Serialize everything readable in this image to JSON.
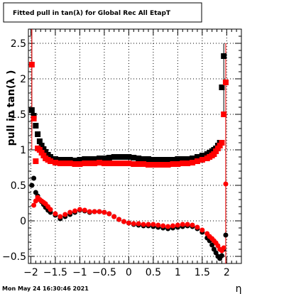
{
  "title": "Fitted pull in tan(λ) for Global Rec All EtapT",
  "timestamp": "Mon May 24 16:30:46 2021",
  "colors": {
    "series_black": "#000000",
    "series_red": "#ff0000",
    "grid": "#000000",
    "background": "#ffffff"
  },
  "chart_data": {
    "type": "scatter",
    "title": "Fitted pull in tan(λ) for Global Rec All EtapT",
    "xlabel": "η",
    "ylabel": "pull in tan(λ )",
    "xlim": [
      -2.05,
      2.3
    ],
    "ylim": [
      -0.6,
      2.7
    ],
    "grid": true,
    "xticks": [
      -2,
      -1.5,
      -1,
      -0.5,
      0,
      0.5,
      1,
      1.5,
      2
    ],
    "xtick_labels": [
      "−2",
      "−1.5",
      "−1",
      "−0.5",
      "0",
      "0.5",
      "1",
      "1.5",
      "2"
    ],
    "yticks": [
      -0.5,
      0,
      0.5,
      1,
      1.5,
      2,
      2.5
    ],
    "ytick_labels": [
      "−0.5",
      "0",
      "0.5",
      "1",
      "1.5",
      "2",
      "2.5"
    ],
    "series": [
      {
        "color": "#000000",
        "marker": "square",
        "x": [
          -1.98,
          -1.94,
          -1.9,
          -1.86,
          -1.82,
          -1.78,
          -1.74,
          -1.7,
          -1.65,
          -1.6,
          -1.5,
          -1.4,
          -1.3,
          -1.2,
          -1.1,
          -1.0,
          -0.9,
          -0.8,
          -0.7,
          -0.6,
          -0.5,
          -0.4,
          -0.3,
          -0.2,
          -0.1,
          0.0,
          0.1,
          0.2,
          0.3,
          0.4,
          0.5,
          0.6,
          0.7,
          0.8,
          0.9,
          1.0,
          1.1,
          1.2,
          1.3,
          1.4,
          1.5,
          1.6,
          1.65,
          1.7,
          1.74,
          1.78,
          1.82,
          1.86,
          1.9,
          1.94
        ],
        "y": [
          1.56,
          1.48,
          1.34,
          1.22,
          1.12,
          1.06,
          1.01,
          0.97,
          0.93,
          0.9,
          0.87,
          0.86,
          0.86,
          0.86,
          0.85,
          0.86,
          0.87,
          0.87,
          0.87,
          0.88,
          0.88,
          0.89,
          0.9,
          0.9,
          0.9,
          0.9,
          0.89,
          0.88,
          0.87,
          0.87,
          0.86,
          0.86,
          0.86,
          0.86,
          0.86,
          0.87,
          0.87,
          0.87,
          0.88,
          0.9,
          0.92,
          0.94,
          0.96,
          0.98,
          1.0,
          1.02,
          1.06,
          1.1,
          1.88,
          2.32
        ]
      },
      {
        "color": "#000000",
        "marker": "circle",
        "x": [
          -1.98,
          -1.94,
          -1.9,
          -1.86,
          -1.82,
          -1.78,
          -1.74,
          -1.7,
          -1.65,
          -1.6,
          -1.5,
          -1.4,
          -1.3,
          -1.2,
          -1.1,
          -1.0,
          -0.9,
          -0.8,
          -0.7,
          -0.6,
          -0.5,
          -0.4,
          -0.3,
          -0.2,
          -0.1,
          0.0,
          0.1,
          0.2,
          0.3,
          0.4,
          0.5,
          0.6,
          0.7,
          0.8,
          0.9,
          1.0,
          1.1,
          1.2,
          1.3,
          1.4,
          1.5,
          1.6,
          1.65,
          1.7,
          1.74,
          1.78,
          1.82,
          1.86,
          1.9,
          1.94,
          1.98
        ],
        "y": [
          0.5,
          0.6,
          0.4,
          0.35,
          0.3,
          0.27,
          0.23,
          0.19,
          0.15,
          0.12,
          0.08,
          0.03,
          0.06,
          0.09,
          0.12,
          0.15,
          0.14,
          0.12,
          0.13,
          0.13,
          0.12,
          0.1,
          0.06,
          0.02,
          -0.01,
          -0.03,
          -0.05,
          -0.06,
          -0.07,
          -0.07,
          -0.08,
          -0.09,
          -0.1,
          -0.11,
          -0.1,
          -0.09,
          -0.08,
          -0.07,
          -0.08,
          -0.11,
          -0.16,
          -0.24,
          -0.28,
          -0.34,
          -0.4,
          -0.45,
          -0.5,
          -0.53,
          -0.49,
          -0.4,
          -0.2
        ]
      },
      {
        "color": "#ff0000",
        "marker": "square",
        "x": [
          -1.98,
          -1.94,
          -1.9,
          -1.86,
          -1.82,
          -1.78,
          -1.74,
          -1.7,
          -1.65,
          -1.6,
          -1.5,
          -1.4,
          -1.3,
          -1.2,
          -1.1,
          -1.0,
          -0.9,
          -0.8,
          -0.7,
          -0.6,
          -0.5,
          -0.4,
          -0.3,
          -0.2,
          -0.1,
          0.0,
          0.1,
          0.2,
          0.3,
          0.4,
          0.5,
          0.6,
          0.7,
          0.8,
          0.9,
          1.0,
          1.1,
          1.2,
          1.3,
          1.4,
          1.5,
          1.6,
          1.65,
          1.7,
          1.74,
          1.78,
          1.82,
          1.86,
          1.9,
          1.94,
          1.98
        ],
        "y": [
          2.2,
          1.44,
          0.84,
          1.02,
          1.0,
          0.96,
          0.92,
          0.88,
          0.86,
          0.84,
          0.82,
          0.81,
          0.81,
          0.81,
          0.8,
          0.8,
          0.81,
          0.81,
          0.81,
          0.82,
          0.81,
          0.81,
          0.81,
          0.81,
          0.81,
          0.81,
          0.8,
          0.8,
          0.8,
          0.79,
          0.79,
          0.79,
          0.79,
          0.79,
          0.8,
          0.8,
          0.81,
          0.81,
          0.82,
          0.84,
          0.86,
          0.88,
          0.9,
          0.92,
          0.94,
          0.98,
          1.02,
          1.06,
          1.1,
          1.5,
          1.95
        ]
      },
      {
        "color": "#ff0000",
        "marker": "circle",
        "x": [
          -1.94,
          -1.9,
          -1.86,
          -1.82,
          -1.78,
          -1.74,
          -1.7,
          -1.65,
          -1.6,
          -1.5,
          -1.4,
          -1.3,
          -1.2,
          -1.1,
          -1.0,
          -0.9,
          -0.8,
          -0.7,
          -0.6,
          -0.5,
          -0.4,
          -0.3,
          -0.2,
          -0.1,
          0.0,
          0.1,
          0.2,
          0.3,
          0.4,
          0.5,
          0.6,
          0.7,
          0.8,
          0.9,
          1.0,
          1.1,
          1.2,
          1.3,
          1.4,
          1.5,
          1.6,
          1.65,
          1.7,
          1.74,
          1.78,
          1.82,
          1.86,
          1.9,
          1.94,
          1.98
        ],
        "y": [
          0.22,
          0.28,
          0.33,
          0.3,
          0.28,
          0.26,
          0.24,
          0.2,
          0.16,
          0.1,
          0.06,
          0.09,
          0.12,
          0.14,
          0.16,
          0.15,
          0.13,
          0.13,
          0.13,
          0.12,
          0.1,
          0.06,
          0.02,
          -0.01,
          -0.03,
          -0.04,
          -0.04,
          -0.05,
          -0.05,
          -0.05,
          -0.06,
          -0.07,
          -0.08,
          -0.07,
          -0.06,
          -0.05,
          -0.05,
          -0.06,
          -0.09,
          -0.13,
          -0.18,
          -0.22,
          -0.25,
          -0.28,
          -0.31,
          -0.35,
          -0.4,
          -0.42,
          -0.38,
          0.52
        ]
      }
    ],
    "error_bars": [
      {
        "color": "#000000",
        "x": -1.98,
        "y": [
          1.2,
          2.7
        ]
      },
      {
        "color": "#000000",
        "x": 1.94,
        "y": [
          1.5,
          2.5
        ]
      },
      {
        "color": "#000000",
        "x": 1.98,
        "y": [
          -0.6,
          1.5
        ]
      },
      {
        "color": "#ff0000",
        "x": -1.98,
        "y": [
          1.0,
          2.7
        ]
      },
      {
        "color": "#ff0000",
        "x": 1.98,
        "y": [
          -0.6,
          2.5
        ]
      }
    ]
  }
}
